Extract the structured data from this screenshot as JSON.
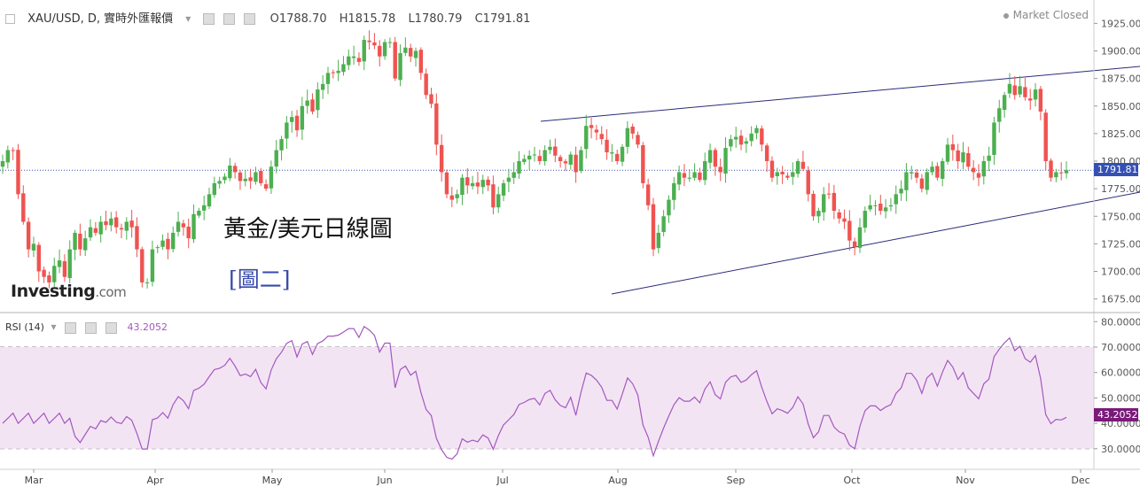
{
  "header": {
    "symbol": "XAU/USD, D, 實時外匯報價",
    "open": "O1788.70",
    "high": "H1815.78",
    "low": "L1780.79",
    "close": "C1791.81",
    "market_status": "Market Closed"
  },
  "annotations": {
    "title": "黃金/美元日線圖",
    "figure_label": "[圖二]",
    "logo_main": "Investing",
    "logo_suffix": ".com"
  },
  "colors": {
    "up": "#4caf50",
    "down": "#ef5350",
    "rsi_line": "#a358c0",
    "rsi_band": "#f3e4f3",
    "trendline": "#2b2b7a",
    "price_tag": "#3550b3",
    "rsi_tag": "#7a1a7a"
  },
  "chart_data": [
    {
      "type": "candlestick",
      "x_labels": [
        "Mar",
        "Apr",
        "May",
        "Jun",
        "Jul",
        "Aug",
        "Sep",
        "Oct",
        "Nov",
        "Dec"
      ],
      "y_ticks": [
        "1675.00",
        "1700.00",
        "1725.00",
        "1750.00",
        "1775.00",
        "1800.00",
        "1825.00",
        "1850.00",
        "1875.00",
        "1900.00",
        "1925.00"
      ],
      "ylim": [
        1665,
        1935
      ],
      "last_price": 1791.81,
      "last_price_label": "1791.81",
      "closes": [
        1800,
        1810,
        1810,
        1770,
        1745,
        1720,
        1725,
        1700,
        1695,
        1690,
        1705,
        1710,
        1695,
        1720,
        1735,
        1720,
        1730,
        1740,
        1735,
        1745,
        1742,
        1748,
        1740,
        1738,
        1745,
        1740,
        1720,
        1690,
        1690,
        1720,
        1722,
        1728,
        1720,
        1735,
        1745,
        1740,
        1730,
        1752,
        1755,
        1760,
        1770,
        1780,
        1782,
        1786,
        1796,
        1790,
        1782,
        1784,
        1782,
        1790,
        1780,
        1775,
        1795,
        1810,
        1820,
        1835,
        1840,
        1828,
        1850,
        1855,
        1845,
        1865,
        1870,
        1880,
        1880,
        1882,
        1888,
        1895,
        1895,
        1890,
        1910,
        1908,
        1905,
        1895,
        1908,
        1908,
        1875,
        1898,
        1903,
        1895,
        1900,
        1880,
        1860,
        1852,
        1815,
        1790,
        1770,
        1765,
        1770,
        1785,
        1778,
        1780,
        1777,
        1783,
        1778,
        1758,
        1770,
        1780,
        1785,
        1790,
        1800,
        1802,
        1805,
        1806,
        1800,
        1810,
        1813,
        1805,
        1800,
        1798,
        1806,
        1790,
        1810,
        1832,
        1830,
        1826,
        1820,
        1808,
        1808,
        1800,
        1813,
        1830,
        1825,
        1815,
        1780,
        1760,
        1720,
        1735,
        1750,
        1765,
        1780,
        1790,
        1785,
        1785,
        1790,
        1783,
        1800,
        1810,
        1795,
        1790,
        1812,
        1820,
        1822,
        1815,
        1818,
        1825,
        1830,
        1815,
        1800,
        1785,
        1790,
        1788,
        1785,
        1790,
        1800,
        1793,
        1770,
        1750,
        1755,
        1770,
        1770,
        1755,
        1748,
        1745,
        1728,
        1722,
        1740,
        1755,
        1760,
        1760,
        1755,
        1758,
        1760,
        1770,
        1775,
        1790,
        1790,
        1785,
        1775,
        1790,
        1795,
        1785,
        1800,
        1815,
        1810,
        1800,
        1808,
        1795,
        1790,
        1785,
        1800,
        1805,
        1835,
        1848,
        1860,
        1870,
        1860,
        1868,
        1858,
        1855,
        1865,
        1845,
        1800,
        1785,
        1790,
        1789,
        1791.81
      ]
    },
    {
      "type": "line",
      "name": "RSI (14)",
      "current_label": "43.2052",
      "y_ticks": [
        "30.0000",
        "40.0000",
        "50.0000",
        "60.0000",
        "70.0000",
        "80.0000"
      ],
      "ylim": [
        24,
        83
      ],
      "band": [
        30,
        70
      ]
    }
  ]
}
